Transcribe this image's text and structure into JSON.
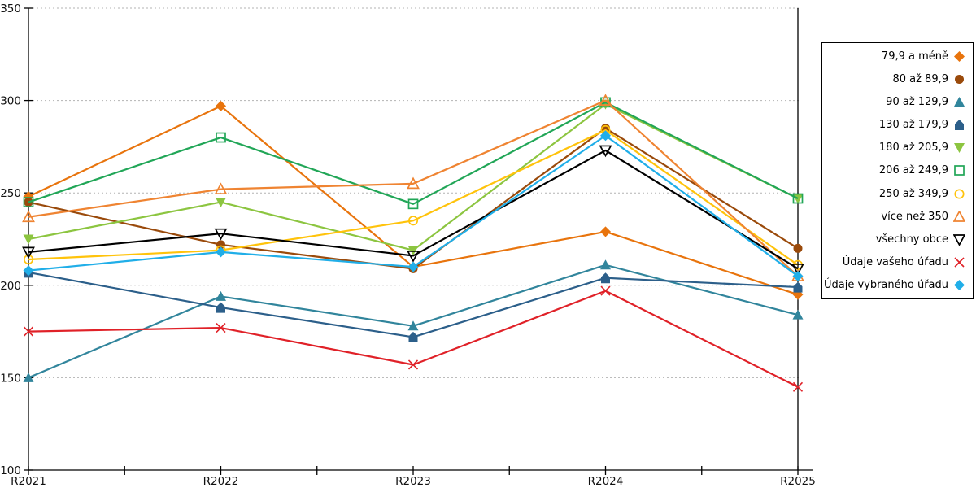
{
  "chart_data": {
    "type": "line",
    "title": "",
    "x_categories": [
      "R2021",
      "R2022",
      "R2023",
      "R2024",
      "R2025"
    ],
    "y_axis": {
      "min": 100,
      "max": 350,
      "tick_step": 50,
      "tick_labels": [
        "350",
        "300",
        "250",
        "200",
        "150",
        "100"
      ]
    },
    "grid": "horizontal dotted gridlines",
    "legend_position": "right-outside",
    "axis_color": "#000000",
    "grid_color": "#b3b3b3",
    "series": [
      {
        "name": "79,9 a méně",
        "color": "#E8740D",
        "marker": "diamond",
        "style": "filled",
        "values": [
          248,
          297,
          210,
          229,
          195
        ]
      },
      {
        "name": "80 až 89,9",
        "color": "#9A4A0B",
        "marker": "circle",
        "style": "filled",
        "values": [
          245,
          222,
          209,
          285,
          220
        ]
      },
      {
        "name": "90 až 129,9",
        "color": "#31859C",
        "marker": "triangle-up",
        "style": "filled",
        "values": [
          150,
          194,
          178,
          211,
          184
        ]
      },
      {
        "name": "130 až 179,9",
        "color": "#2C5F8A",
        "marker": "pentagon",
        "style": "filled",
        "values": [
          207,
          188,
          172,
          204,
          199
        ]
      },
      {
        "name": "180 až 205,9",
        "color": "#8CC540",
        "marker": "triangle-down",
        "style": "filled",
        "values": [
          225,
          245,
          219,
          298,
          247
        ]
      },
      {
        "name": "206 až 249,9",
        "color": "#21A657",
        "marker": "square",
        "style": "open",
        "values": [
          245,
          280,
          244,
          299,
          247
        ]
      },
      {
        "name": "250 až 349,9",
        "color": "#FFC30B",
        "marker": "circle",
        "style": "open",
        "values": [
          214,
          219,
          235,
          284,
          211
        ]
      },
      {
        "name": "více než 350",
        "color": "#EF8432",
        "marker": "triangle-up",
        "style": "open",
        "values": [
          237,
          252,
          255,
          300,
          205
        ]
      },
      {
        "name": "všechny obce",
        "color": "#000000",
        "marker": "triangle-down",
        "style": "open",
        "values": [
          218,
          228,
          216,
          273,
          209
        ]
      },
      {
        "name": "Údaje vašeho úřadu",
        "color": "#E02128",
        "marker": "x",
        "style": "open",
        "values": [
          175,
          177,
          157,
          197,
          145
        ]
      },
      {
        "name": "Údaje vybraného úřadu",
        "color": "#20AEE8",
        "marker": "diamond",
        "style": "filled",
        "values": [
          208,
          218,
          210,
          281,
          205
        ]
      }
    ]
  }
}
